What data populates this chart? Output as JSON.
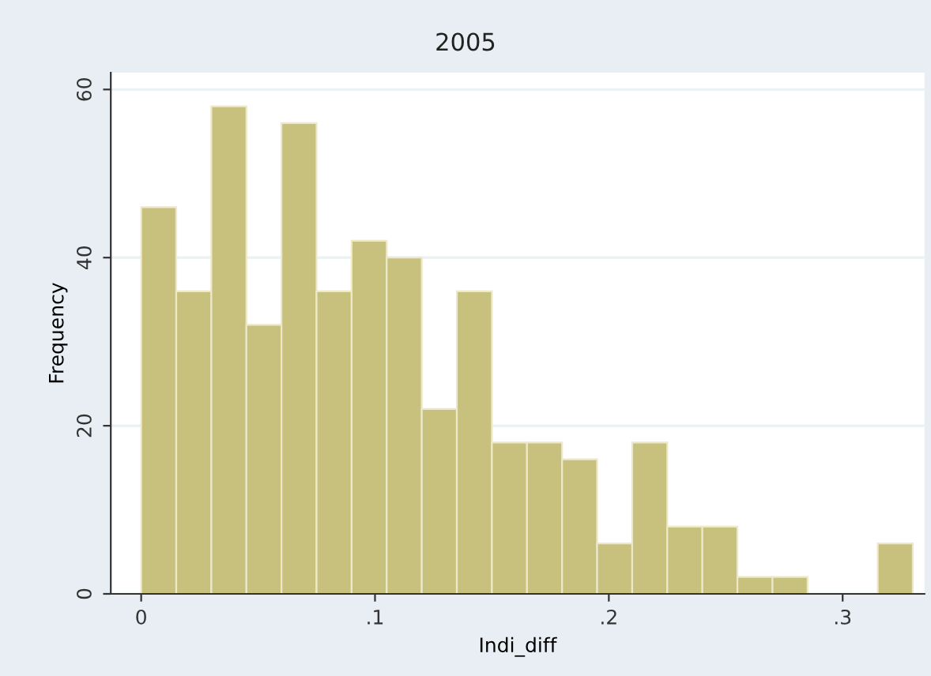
{
  "chart_data": {
    "type": "histogram",
    "title": "2005",
    "xlabel": "Indi_diff",
    "ylabel": "Frequency",
    "bins": [
      0,
      0.015,
      0.03,
      0.045,
      0.06,
      0.075,
      0.09,
      0.105,
      0.12,
      0.135,
      0.15,
      0.165,
      0.18,
      0.195,
      0.21,
      0.225,
      0.24,
      0.255,
      0.27,
      0.285,
      0.3,
      0.315,
      0.33
    ],
    "values": [
      46,
      36,
      58,
      32,
      56,
      36,
      42,
      40,
      22,
      36,
      18,
      18,
      16,
      6,
      18,
      8,
      8,
      2,
      2,
      0,
      0,
      6
    ],
    "color": "#c8c17e",
    "xlim": [
      -0.013,
      0.335
    ],
    "ylim": [
      0,
      62
    ],
    "xticks": [
      0,
      {
        "value": 0.1,
        "label": ".1"
      },
      {
        "value": 0.2,
        "label": ".2"
      },
      {
        "value": 0.3,
        "label": ".3"
      }
    ],
    "yticks": [
      0,
      20,
      40,
      60
    ],
    "grid": "y"
  }
}
